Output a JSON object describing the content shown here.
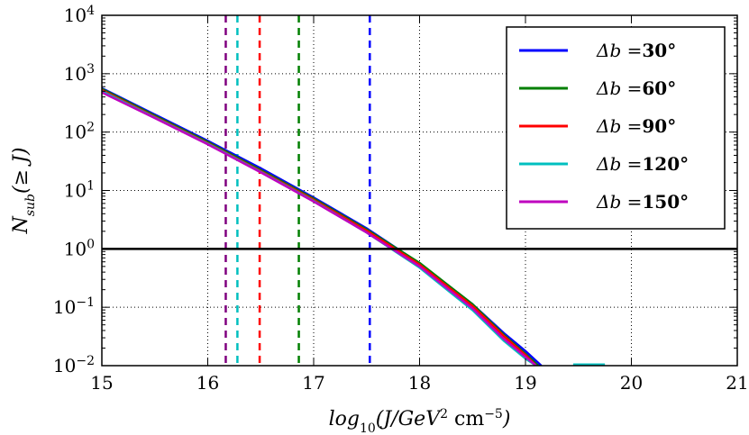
{
  "chart_data": {
    "type": "line",
    "title": "",
    "xlabel": "log10(J/GeV^2 cm^-5)",
    "xlabel_parts": {
      "main": "log",
      "sub": "10",
      "paren": "(J/GeV",
      "sup1": "2",
      "mid": " cm",
      "sup2": "−5",
      "end": ")"
    },
    "ylabel": "N_sub(≥ J)",
    "ylabel_parts": {
      "main": "N",
      "sub": "sub",
      "rest": "(≥ J)"
    },
    "xlim": [
      15,
      21
    ],
    "ylim_log10": [
      -2,
      4
    ],
    "x_ticks": [
      15,
      16,
      17,
      18,
      19,
      20,
      21
    ],
    "x_tick_labels": [
      "15",
      "16",
      "17",
      "18",
      "19",
      "20",
      "21"
    ],
    "y_ticks_log10": [
      -2,
      -1,
      0,
      1,
      2,
      3,
      4
    ],
    "y_tick_labels": [
      {
        "base": "10",
        "exp": "−2"
      },
      {
        "base": "10",
        "exp": "−1"
      },
      {
        "base": "10",
        "exp": "0"
      },
      {
        "base": "10",
        "exp": "1"
      },
      {
        "base": "10",
        "exp": "2"
      },
      {
        "base": "10",
        "exp": "3"
      },
      {
        "base": "10",
        "exp": "4"
      }
    ],
    "grid": true,
    "legend_position": "top-right",
    "reference_line": {
      "y": 1,
      "color": "#000000"
    },
    "vlines": [
      {
        "x": 17.53,
        "color": "#0000ff",
        "series": "Δb =30°"
      },
      {
        "x": 16.86,
        "color": "#007f00",
        "series": "Δb =60°"
      },
      {
        "x": 16.49,
        "color": "#ff0000",
        "series": "Δb =90°"
      },
      {
        "x": 16.28,
        "color": "#00bfbf",
        "series": "Δb =120°"
      },
      {
        "x": 16.17,
        "color": "#7f007f",
        "series": "Δb =150°"
      }
    ],
    "series": [
      {
        "name": "Δb =30°",
        "color": "#0000ff",
        "x": [
          15.0,
          15.5,
          16.0,
          16.5,
          17.0,
          17.5,
          18.0,
          18.5,
          18.8,
          19.0,
          19.15
        ],
        "log10_y": [
          2.75,
          2.3,
          1.85,
          1.38,
          0.88,
          0.35,
          -0.25,
          -0.95,
          -1.45,
          -1.75,
          -2.0
        ]
      },
      {
        "name": "Δb =60°",
        "color": "#007f00",
        "x": [
          15.0,
          15.5,
          16.0,
          16.5,
          17.0,
          17.5,
          18.0,
          18.5,
          18.8,
          19.0,
          19.12
        ],
        "log10_y": [
          2.74,
          2.28,
          1.83,
          1.35,
          0.86,
          0.33,
          -0.24,
          -0.95,
          -1.48,
          -1.8,
          -2.0
        ]
      },
      {
        "name": "Δb =90°",
        "color": "#ff0000",
        "x": [
          15.0,
          15.5,
          16.0,
          16.5,
          17.0,
          17.5,
          18.0,
          18.5,
          18.8,
          19.0,
          19.1
        ],
        "log10_y": [
          2.72,
          2.26,
          1.81,
          1.33,
          0.84,
          0.31,
          -0.27,
          -0.98,
          -1.5,
          -1.82,
          -2.0
        ]
      },
      {
        "name": "Δb =120°",
        "color": "#00bfbf",
        "x": [
          15.0,
          15.5,
          16.0,
          16.5,
          17.0,
          17.5,
          18.0,
          18.5,
          18.8,
          19.0,
          19.1
        ],
        "log10_y": [
          2.7,
          2.25,
          1.8,
          1.32,
          0.82,
          0.28,
          -0.32,
          -1.05,
          -1.58,
          -1.88,
          -2.0
        ]
      },
      {
        "name": "Δb =150°",
        "color": "#bf00bf",
        "x": [
          15.0,
          15.5,
          16.0,
          16.5,
          17.0,
          17.5,
          18.0,
          18.5,
          18.8,
          19.0,
          19.1
        ],
        "log10_y": [
          2.68,
          2.24,
          1.79,
          1.31,
          0.81,
          0.28,
          -0.3,
          -1.02,
          -1.55,
          -1.85,
          -2.0
        ]
      }
    ],
    "tail_segment": {
      "x": [
        19.45,
        19.75
      ],
      "log10_y": [
        -2.0,
        -2.0
      ],
      "color": "#00bfbf"
    },
    "legend": [
      {
        "symbol": "Δb",
        "eq": " =",
        "value": "30°",
        "color": "#0000ff"
      },
      {
        "symbol": "Δb",
        "eq": " =",
        "value": "60°",
        "color": "#007f00"
      },
      {
        "symbol": "Δb",
        "eq": " =",
        "value": "90°",
        "color": "#ff0000"
      },
      {
        "symbol": "Δb",
        "eq": " =",
        "value": "120°",
        "color": "#00bfbf"
      },
      {
        "symbol": "Δb",
        "eq": " =",
        "value": "150°",
        "color": "#bf00bf"
      }
    ]
  }
}
